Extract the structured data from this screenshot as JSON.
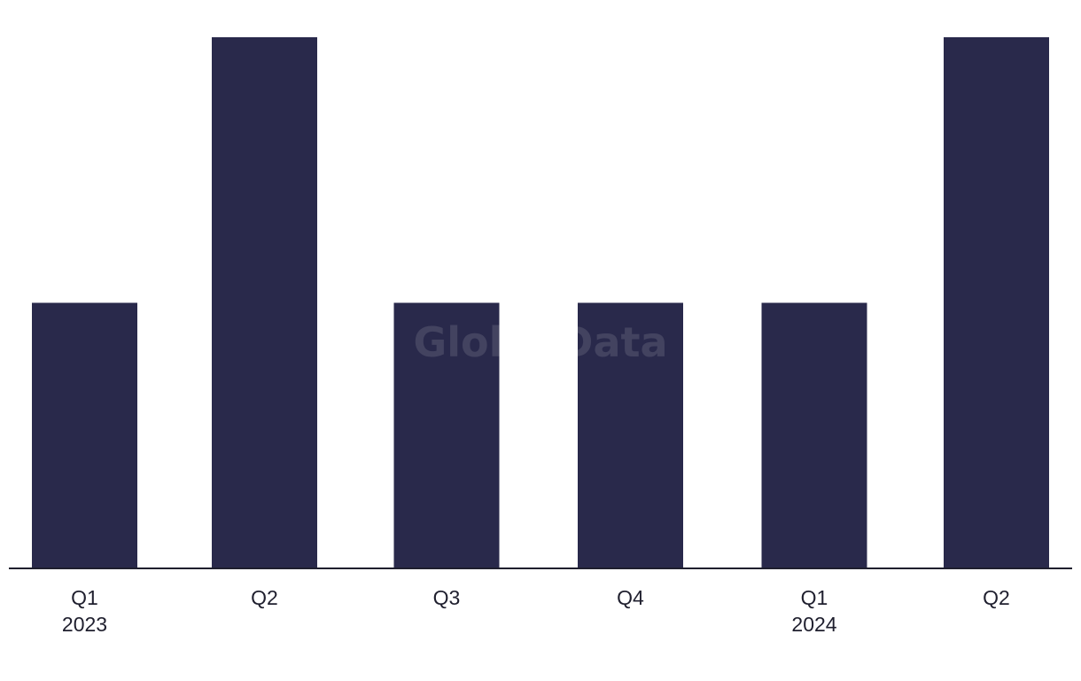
{
  "watermark": "GlobalData",
  "colors": {
    "bar": "#29294b",
    "axis": "#1f1f2e"
  },
  "chart_data": {
    "type": "bar",
    "categories": [
      "Q1 2023",
      "Q2 2023",
      "Q3 2023",
      "Q4 2023",
      "Q1 2024",
      "Q2 2024"
    ],
    "tick_labels": [
      {
        "quarter": "Q1",
        "year": "2023"
      },
      {
        "quarter": "Q2",
        "year": ""
      },
      {
        "quarter": "Q3",
        "year": ""
      },
      {
        "quarter": "Q4",
        "year": ""
      },
      {
        "quarter": "Q1",
        "year": "2024"
      },
      {
        "quarter": "Q2",
        "year": ""
      }
    ],
    "values": [
      1,
      2,
      1,
      1,
      1,
      2
    ],
    "title": "",
    "xlabel": "",
    "ylabel": "",
    "ylim": [
      0,
      2
    ],
    "grid": false,
    "legend": "none"
  }
}
